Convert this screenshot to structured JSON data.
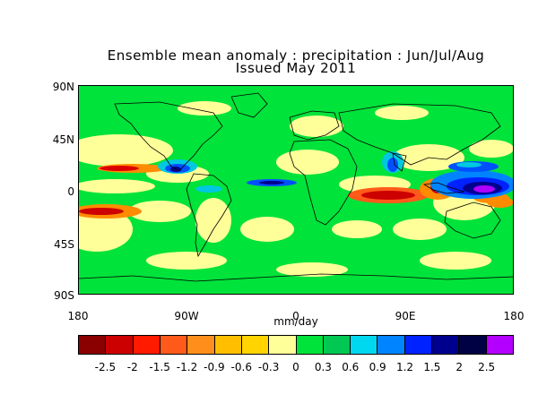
{
  "title": {
    "line1": "Ensemble mean anomaly : precipitation : Jun/Jul/Aug",
    "line2": "Issued May 2011"
  },
  "map": {
    "y_axis_labels": [
      "90N",
      "45N",
      "0",
      "45S",
      "90S"
    ],
    "x_axis_labels": [
      "180",
      "90W",
      "0",
      "90E",
      "180"
    ],
    "units": "mm/day",
    "palette": {
      "land_outline": "#000000",
      "background_field": "#00e33a",
      "dry_mild": "#ffff99",
      "dry_orange": "#ff8c00",
      "dry_red": "#dd0000",
      "wet_cyan": "#00c8e0",
      "wet_blue": "#0050ff",
      "wet_navy": "#000090",
      "wet_purple": "#b000ff"
    }
  },
  "colorbar": {
    "colors": [
      "#8b0000",
      "#cc0000",
      "#ff1a00",
      "#ff5a1a",
      "#ff8f1a",
      "#ffbf00",
      "#ffd400",
      "#ffff99",
      "#00e33a",
      "#00c853",
      "#00d8f0",
      "#0084ff",
      "#0022ff",
      "#00008f",
      "#000044",
      "#b300ff"
    ],
    "labels": [
      "-2.5",
      "-2",
      "-1.5",
      "-1.2",
      "-0.9",
      "-0.6",
      "-0.3",
      "0",
      "0.3",
      "0.6",
      "0.9",
      "1.2",
      "1.5",
      "2",
      "2.5"
    ]
  }
}
